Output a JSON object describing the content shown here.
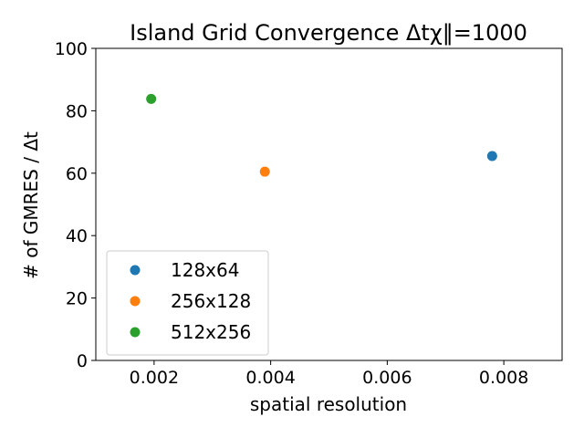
{
  "chart_data": {
    "type": "scatter",
    "title": "Island Grid Convergence Δtχ‖=1000",
    "xlabel": "spatial resolution",
    "ylabel": "# of GMRES / Δt",
    "xlim": [
      0.001,
      0.009
    ],
    "ylim": [
      0,
      100
    ],
    "xticks": [
      0.002,
      0.004,
      0.006,
      0.008
    ],
    "xtick_labels": [
      "0.002",
      "0.004",
      "0.006",
      "0.008"
    ],
    "yticks": [
      0,
      20,
      40,
      60,
      80,
      100
    ],
    "ytick_labels": [
      "0",
      "20",
      "40",
      "60",
      "80",
      "100"
    ],
    "grid": false,
    "legend_position": "lower-left",
    "series": [
      {
        "name": "128x64",
        "color": "#1f77b4",
        "points": [
          {
            "x": 0.0078,
            "y": 65.5
          }
        ]
      },
      {
        "name": "256x128",
        "color": "#ff7f0e",
        "points": [
          {
            "x": 0.0039,
            "y": 60.5
          }
        ]
      },
      {
        "name": "512x256",
        "color": "#2ca02c",
        "points": [
          {
            "x": 0.00195,
            "y": 83.8
          }
        ]
      }
    ]
  }
}
